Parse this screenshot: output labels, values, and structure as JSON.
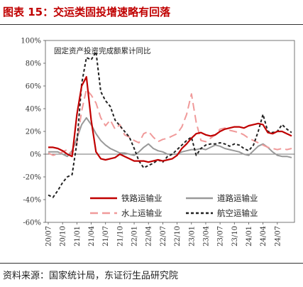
{
  "figure": {
    "title": "图表 15：交运类固投增速略有回落",
    "source": "资料来源：国家统计局，东证衍生品研究院"
  },
  "chart_data": {
    "type": "line",
    "title": "固定资产投资完成额累计同比",
    "xlabel": "",
    "ylabel": "",
    "ylim": [
      -0.6,
      1.0
    ],
    "yticks": [
      "100%",
      "80%",
      "60%",
      "40%",
      "20%",
      "0%",
      "-20%",
      "-40%",
      "-60%"
    ],
    "x_ticks": [
      "20/07",
      "20/10",
      "21/01",
      "21/04",
      "21/07",
      "21/10",
      "22/01",
      "22/04",
      "22/07",
      "22/10",
      "23/01",
      "23/04",
      "23/07",
      "23/10",
      "24/01",
      "24/04",
      "24/07"
    ],
    "x_start": "2020-07",
    "legend_position": "bottom-center",
    "grid": false,
    "series": [
      {
        "name": "铁路运输业",
        "color": "#c00000",
        "dash": "solid",
        "values": [
          0.06,
          0.06,
          0.05,
          0.03,
          0.0,
          -0.02,
          0.35,
          0.6,
          0.68,
          0.3,
          0.02,
          -0.04,
          -0.05,
          -0.04,
          -0.03,
          0.0,
          -0.02,
          -0.04,
          -0.06,
          -0.06,
          -0.06,
          -0.07,
          -0.06,
          -0.05,
          -0.06,
          -0.05,
          -0.04,
          -0.01,
          0.05,
          0.09,
          0.14,
          0.18,
          0.19,
          0.17,
          0.16,
          0.17,
          0.2,
          0.22,
          0.23,
          0.24,
          0.24,
          0.23,
          0.25,
          0.26,
          0.27,
          0.26,
          0.19,
          0.18,
          0.2,
          0.2,
          0.18,
          0.16
        ]
      },
      {
        "name": "道路运输业",
        "color": "#999999",
        "dash": "solid",
        "values": [
          0.02,
          0.02,
          0.02,
          0.0,
          -0.02,
          0.03,
          0.14,
          0.26,
          0.32,
          0.26,
          0.18,
          0.12,
          0.08,
          0.05,
          0.03,
          0.01,
          0.01,
          0.0,
          -0.01,
          0.02,
          0.06,
          0.09,
          0.05,
          0.03,
          0.02,
          0.0,
          0.0,
          0.0,
          0.02,
          0.03,
          0.04,
          0.04,
          0.05,
          0.04,
          0.06,
          0.08,
          0.07,
          0.05,
          0.04,
          0.03,
          0.02,
          0.0,
          -0.01,
          0.03,
          0.07,
          0.09,
          0.06,
          0.02,
          -0.01,
          -0.02,
          -0.02,
          -0.03
        ]
      },
      {
        "name": "水上运输业",
        "color": "#f09a9a",
        "dash": "long-dash",
        "values": [
          0.01,
          -0.01,
          0.0,
          0.02,
          0.04,
          0.0,
          0.1,
          0.38,
          0.57,
          0.52,
          0.45,
          0.32,
          0.25,
          0.3,
          0.22,
          0.26,
          0.17,
          0.15,
          0.12,
          0.1,
          0.18,
          0.2,
          0.15,
          0.11,
          0.13,
          0.14,
          0.16,
          0.18,
          0.24,
          0.35,
          0.53,
          0.28,
          0.12,
          0.11,
          0.14,
          0.17,
          0.22,
          0.23,
          0.21,
          0.2,
          0.19,
          0.17,
          0.14,
          0.12,
          0.1,
          0.08,
          0.06,
          0.05,
          0.04,
          0.05,
          0.04,
          0.05
        ]
      },
      {
        "name": "航空运输业",
        "color": "#222222",
        "dash": "short-dash",
        "values": [
          -0.36,
          -0.38,
          -0.32,
          -0.25,
          -0.2,
          -0.18,
          0.1,
          0.62,
          0.85,
          0.83,
          0.9,
          0.55,
          0.47,
          0.42,
          0.3,
          0.25,
          0.2,
          0.15,
          0.05,
          -0.06,
          -0.12,
          -0.1,
          -0.08,
          -0.05,
          -0.07,
          -0.02,
          0.0,
          0.04,
          0.08,
          0.12,
          0.15,
          -0.01,
          0.05,
          0.08,
          0.09,
          0.09,
          0.1,
          0.09,
          0.07,
          0.09,
          0.08,
          0.05,
          0.03,
          0.08,
          0.2,
          0.35,
          0.2,
          0.19,
          0.2,
          0.26,
          0.22,
          0.19
        ]
      }
    ]
  }
}
